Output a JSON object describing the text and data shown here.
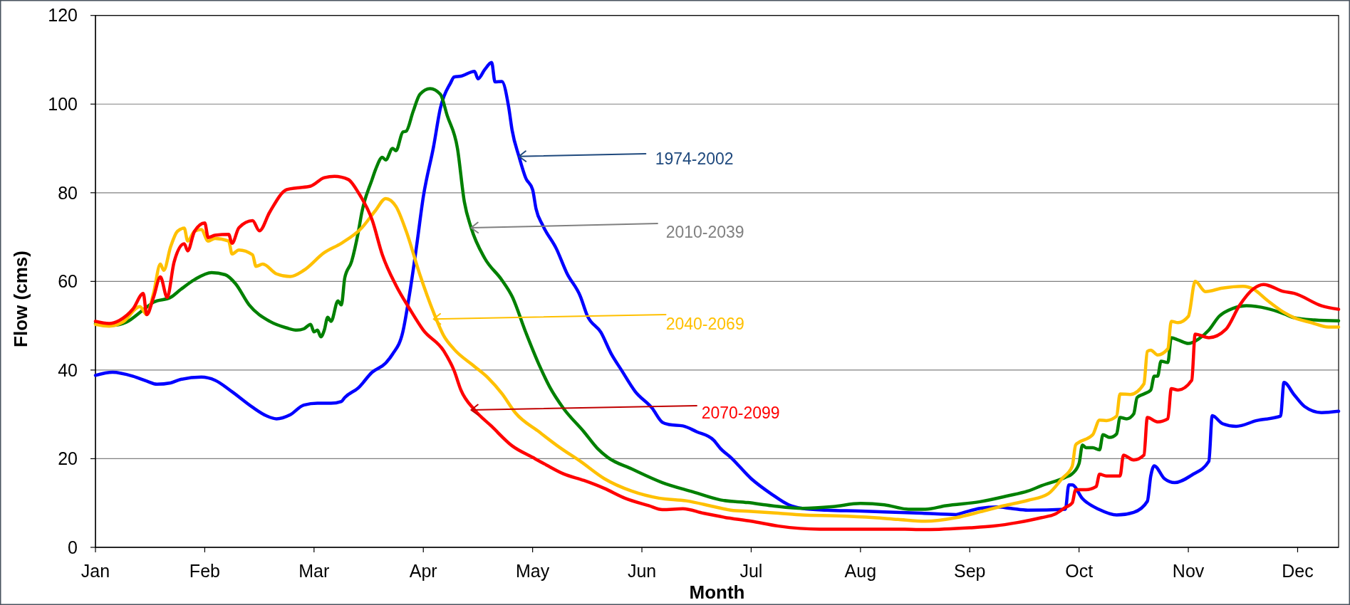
{
  "chart_data": {
    "type": "line",
    "xlabel": "Month",
    "ylabel": "Flow (cms)",
    "xlim": [
      "--01-01",
      "--12-31"
    ],
    "xticks": [
      {
        "value": "--01-01",
        "label": "Jan"
      },
      {
        "value": "--02-02",
        "label": "Feb"
      },
      {
        "value": "--03-06",
        "label": "Mar"
      },
      {
        "value": "--04-07",
        "label": "Apr"
      },
      {
        "value": "--05-09",
        "label": "May"
      },
      {
        "value": "--06-10",
        "label": "Jun"
      },
      {
        "value": "--07-12",
        "label": "Jul"
      },
      {
        "value": "--08-13",
        "label": "Aug"
      },
      {
        "value": "--09-14",
        "label": "Sep"
      },
      {
        "value": "--10-16",
        "label": "Oct"
      },
      {
        "value": "--11-17",
        "label": "Nov"
      },
      {
        "value": "--12-19",
        "label": "Dec"
      }
    ],
    "ylim": [
      0,
      120
    ],
    "yticks": [
      0,
      20,
      40,
      60,
      80,
      100,
      120
    ],
    "grid": "y",
    "series": [
      {
        "color": "#0000ff",
        "x": [
          "--01-01",
          "--01-06",
          "--01-12",
          "--01-16",
          "--01-19",
          "--01-23",
          "--01-26",
          "--02-01",
          "--02-05",
          "--02-10",
          "--02-16",
          "--02-20",
          "--02-23",
          "--02-27",
          "--03-03",
          "--03-07",
          "--03-11",
          "--03-14",
          "--03-15",
          "--03-19",
          "--03-23",
          "--03-27",
          "--03-29",
          "--04-01",
          "--04-03",
          "--04-05",
          "--04-07",
          "--04-10",
          "--04-12",
          "--04-15",
          "--04-16",
          "--04-18",
          "--04-22",
          "--04-23",
          "--04-25",
          "--04-27",
          "--04-28",
          "--04-30",
          "--05-02",
          "--05-03",
          "--05-05",
          "--05-07",
          "--05-09",
          "--05-10",
          "--05-12",
          "--05-16",
          "--05-19",
          "--05-23",
          "--05-25",
          "--05-29",
          "--06-01",
          "--06-04",
          "--06-08",
          "--06-13",
          "--06-16",
          "--06-18",
          "--06-22",
          "--06-26",
          "--07-01",
          "--07-03",
          "--07-06",
          "--07-12",
          "--07-18",
          "--07-23",
          "--07-27",
          "--08-03",
          "--08-13",
          "--08-20",
          "--08-31",
          "--09-10",
          "--09-12",
          "--09-17",
          "--09-22",
          "--09-26",
          "--10-01",
          "--10-12",
          "--10-13",
          "--10-14",
          "--10-17",
          "--10-22",
          "--10-27",
          "--11-01",
          "--11-05",
          "--11-06",
          "--11-07",
          "--11-10",
          "--11-13",
          "--11-18",
          "--11-23",
          "--11-24",
          "--11-27",
          "--12-01",
          "--12-07",
          "--12-14",
          "--12-15",
          "--12-18",
          "--12-21",
          "--12-26",
          "--12-31"
        ],
        "values": [
          38.8,
          39.5,
          38.6,
          37.5,
          36.8,
          37.1,
          37.9,
          38.4,
          37.7,
          35.1,
          31.6,
          29.7,
          29.0,
          29.9,
          32.1,
          32.5,
          32.5,
          32.9,
          33.8,
          36.0,
          39.5,
          41.6,
          43.6,
          48.6,
          57.3,
          67.8,
          79.1,
          90.4,
          99.1,
          104.8,
          106.1,
          106.3,
          107.4,
          105.7,
          107.8,
          109.4,
          105.0,
          105.1,
          99.3,
          94.1,
          88.2,
          83.3,
          80.7,
          76.4,
          72.6,
          67.3,
          61.9,
          56.6,
          52.3,
          48.5,
          43.7,
          40.0,
          35.2,
          31.4,
          28.2,
          27.7,
          27.4,
          26.1,
          24.2,
          22.3,
          20.3,
          15.5,
          12.0,
          9.6,
          8.8,
          8.4,
          8.2,
          8.0,
          7.7,
          7.4,
          7.8,
          8.8,
          9.1,
          8.8,
          8.4,
          8.6,
          14.1,
          14.1,
          11.0,
          8.5,
          7.3,
          7.9,
          10.4,
          16.1,
          18.4,
          15.5,
          14.6,
          16.3,
          19.4,
          29.7,
          27.9,
          27.3,
          28.6,
          29.6,
          37.2,
          34.4,
          31.8,
          30.4,
          30.7
        ]
      },
      {
        "color": "#008000",
        "x": [
          "--01-01",
          "--01-06",
          "--01-10",
          "--01-15",
          "--01-18",
          "--01-23",
          "--01-26",
          "--01-30",
          "--02-04",
          "--02-08",
          "--02-11",
          "--02-15",
          "--02-21",
          "--02-26",
          "--03-01",
          "--03-03",
          "--03-05",
          "--03-06",
          "--03-07",
          "--03-08",
          "--03-09",
          "--03-10",
          "--03-11",
          "--03-13",
          "--03-14",
          "--03-15",
          "--03-17",
          "--03-19",
          "--03-20",
          "--03-23",
          "--03-24",
          "--03-26",
          "--03-27",
          "--03-29",
          "--03-30",
          "--04-01",
          "--04-02",
          "--04-04",
          "--04-06",
          "--04-09",
          "--04-12",
          "--04-14",
          "--04-17",
          "--04-19",
          "--04-21",
          "--04-25",
          "--04-30",
          "--05-03",
          "--05-07",
          "--05-11",
          "--05-14",
          "--05-18",
          "--05-24",
          "--05-28",
          "--05-31",
          "--06-07",
          "--06-16",
          "--06-25",
          "--07-03",
          "--07-11",
          "--07-18",
          "--07-27",
          "--08-05",
          "--08-13",
          "--08-20",
          "--08-27",
          "--09-01",
          "--09-07",
          "--09-17",
          "--09-25",
          "--10-01",
          "--10-05",
          "--10-12",
          "--10-14",
          "--10-16",
          "--10-17",
          "--10-18",
          "--10-20",
          "--10-22",
          "--10-23",
          "--10-25",
          "--10-27",
          "--10-28",
          "--10-30",
          "--11-01",
          "--11-02",
          "--11-04",
          "--11-06",
          "--11-07",
          "--11-08",
          "--11-09",
          "--11-11",
          "--11-12",
          "--11-14",
          "--11-17",
          "--11-20",
          "--11-23",
          "--11-26",
          "--11-30",
          "--12-04",
          "--12-10",
          "--12-15",
          "--12-18",
          "--12-24",
          "--12-31"
        ],
        "values": [
          50.5,
          50.1,
          50.8,
          53.6,
          55.3,
          56.4,
          58.2,
          60.4,
          62.0,
          61.5,
          59.5,
          54.7,
          51.0,
          49.5,
          49.0,
          49.3,
          50.3,
          48.6,
          49.0,
          47.5,
          49.0,
          51.9,
          51.0,
          55.6,
          54.7,
          60.8,
          64.5,
          71.3,
          75.6,
          83.0,
          85.2,
          88.0,
          87.4,
          90.0,
          89.5,
          93.7,
          93.9,
          98.3,
          102.2,
          103.5,
          102.2,
          97.4,
          90.0,
          78.0,
          72.1,
          65.2,
          60.3,
          56.6,
          48.5,
          41.0,
          36.2,
          31.4,
          26.1,
          22.3,
          20.3,
          17.7,
          14.6,
          12.5,
          10.7,
          10.1,
          9.4,
          8.8,
          9.2,
          9.9,
          9.6,
          8.6,
          8.6,
          9.4,
          10.3,
          11.6,
          12.7,
          13.9,
          15.8,
          16.6,
          18.9,
          23.1,
          22.5,
          22.5,
          22.0,
          25.4,
          24.8,
          25.6,
          29.3,
          29.0,
          30.1,
          33.8,
          34.6,
          35.5,
          38.6,
          38.6,
          42.0,
          41.7,
          47.3,
          46.8,
          46.0,
          47.0,
          49.0,
          52.1,
          53.9,
          54.5,
          53.9,
          52.7,
          51.8,
          51.3,
          51.1
        ]
      },
      {
        "color": "#ffc000",
        "x": [
          "--01-01",
          "--01-05",
          "--01-09",
          "--01-14",
          "--01-16",
          "--01-18",
          "--01-20",
          "--01-21",
          "--01-23",
          "--01-25",
          "--01-27",
          "--01-28",
          "--01-30",
          "--02-01",
          "--02-03",
          "--02-05",
          "--02-09",
          "--02-10",
          "--02-12",
          "--02-16",
          "--02-17",
          "--02-19",
          "--02-23",
          "--02-27",
          "--03-03",
          "--03-09",
          "--03-14",
          "--03-20",
          "--03-24",
          "--03-27",
          "--03-30",
          "--04-02",
          "--04-06",
          "--04-10",
          "--04-13",
          "--04-16",
          "--04-22",
          "--04-26",
          "--04-30",
          "--05-04",
          "--05-11",
          "--05-17",
          "--05-23",
          "--05-30",
          "--06-07",
          "--06-15",
          "--06-23",
          "--07-01",
          "--07-06",
          "--07-12",
          "--07-20",
          "--07-27",
          "--08-06",
          "--08-17",
          "--08-24",
          "--09-01",
          "--09-10",
          "--09-17",
          "--09-24",
          "--10-01",
          "--10-07",
          "--10-11",
          "--10-14",
          "--10-15",
          "--10-16",
          "--10-20",
          "--10-22",
          "--10-24",
          "--10-27",
          "--10-28",
          "--10-31",
          "--11-04",
          "--11-05",
          "--11-06",
          "--11-08",
          "--11-11",
          "--11-12",
          "--11-14",
          "--11-17",
          "--11-19",
          "--11-22",
          "--11-27",
          "--12-03",
          "--12-06",
          "--12-10",
          "--12-15",
          "--12-18",
          "--12-23",
          "--12-28",
          "--12-31"
        ],
        "values": [
          50.3,
          49.9,
          50.8,
          54.3,
          52.5,
          57.3,
          63.9,
          62.5,
          67.8,
          71.3,
          72.0,
          69.1,
          71.3,
          71.7,
          69.1,
          69.7,
          69.1,
          66.2,
          67.1,
          66.0,
          63.4,
          63.9,
          61.7,
          61.1,
          62.5,
          66.5,
          68.6,
          72.1,
          76.0,
          78.7,
          76.9,
          71.3,
          61.5,
          53.0,
          47.7,
          44.7,
          40.8,
          38.2,
          34.7,
          30.3,
          26.0,
          22.5,
          19.4,
          15.5,
          12.7,
          11.1,
          10.5,
          9.2,
          8.4,
          8.1,
          7.7,
          7.3,
          7.1,
          6.7,
          6.3,
          5.9,
          6.7,
          8.0,
          9.4,
          10.6,
          12.1,
          15.5,
          18.3,
          23.1,
          23.7,
          25.4,
          28.7,
          28.6,
          29.6,
          34.6,
          34.5,
          36.9,
          44.2,
          44.5,
          43.4,
          44.8,
          51.0,
          50.7,
          52.1,
          60.0,
          57.7,
          58.5,
          58.9,
          58.3,
          55.8,
          53.0,
          51.8,
          50.7,
          49.7,
          49.7
        ]
      },
      {
        "color": "#ff0000",
        "x": [
          "--01-01",
          "--01-05",
          "--01-08",
          "--01-12",
          "--01-15",
          "--01-16",
          "--01-18",
          "--01-20",
          "--01-22",
          "--01-24",
          "--01-27",
          "--01-28",
          "--01-30",
          "--02-02",
          "--02-03",
          "--02-05",
          "--02-09",
          "--02-10",
          "--02-12",
          "--02-16",
          "--02-18",
          "--02-21",
          "--02-26",
          "--03-01",
          "--03-05",
          "--03-09",
          "--03-12",
          "--03-16",
          "--03-19",
          "--03-23",
          "--03-26",
          "--03-30",
          "--04-03",
          "--04-07",
          "--04-13",
          "--04-16",
          "--04-18",
          "--04-22",
          "--04-27",
          "--05-03",
          "--05-09",
          "--05-13",
          "--05-18",
          "--05-24",
          "--05-30",
          "--06-05",
          "--06-12",
          "--06-16",
          "--06-22",
          "--06-28",
          "--07-04",
          "--07-12",
          "--07-20",
          "--08-01",
          "--08-13",
          "--08-24",
          "--09-01",
          "--09-14",
          "--09-21",
          "--09-28",
          "--10-05",
          "--10-09",
          "--10-12",
          "--10-14",
          "--10-15",
          "--10-18",
          "--10-21",
          "--10-22",
          "--10-24",
          "--10-28",
          "--10-29",
          "--11-01",
          "--11-04",
          "--11-05",
          "--11-08",
          "--11-11",
          "--11-12",
          "--11-14",
          "--11-18",
          "--11-19",
          "--11-23",
          "--11-28",
          "--12-02",
          "--12-06",
          "--12-09",
          "--12-15",
          "--12-18",
          "--12-26",
          "--12-31"
        ],
        "values": [
          51.0,
          50.5,
          51.2,
          53.8,
          57.3,
          52.5,
          56.4,
          61.0,
          56.4,
          64.3,
          68.5,
          66.9,
          71.3,
          73.2,
          69.9,
          70.4,
          70.6,
          68.6,
          72.1,
          73.7,
          71.4,
          75.6,
          80.7,
          81.1,
          81.5,
          83.4,
          83.7,
          83.0,
          80.0,
          73.9,
          66.0,
          59.1,
          53.8,
          49.0,
          44.3,
          39.9,
          35.5,
          31.0,
          27.3,
          22.9,
          20.3,
          18.6,
          16.6,
          15.1,
          13.3,
          11.1,
          9.4,
          8.5,
          8.7,
          7.7,
          6.8,
          5.9,
          4.8,
          4.1,
          4.1,
          4.1,
          4.0,
          4.4,
          4.8,
          5.6,
          6.7,
          7.5,
          9.0,
          10.0,
          13.0,
          13.0,
          13.7,
          16.5,
          16.1,
          16.1,
          20.8,
          19.7,
          20.8,
          29.3,
          28.3,
          29.0,
          35.8,
          35.5,
          37.7,
          48.1,
          47.3,
          49.2,
          54.6,
          58.3,
          59.3,
          57.7,
          57.3,
          54.5,
          53.7
        ]
      }
    ],
    "annotations": [
      {
        "text": "1974-2002",
        "x": "--05-05",
        "y": 88.2
      },
      {
        "text": "2010-2039",
        "x": "--04-21",
        "y": 72.1
      },
      {
        "text": "2040-2069",
        "x": "--04-10",
        "y": 51.5
      },
      {
        "text": "2070-2099",
        "x": "--04-21",
        "y": 31.0
      }
    ]
  }
}
